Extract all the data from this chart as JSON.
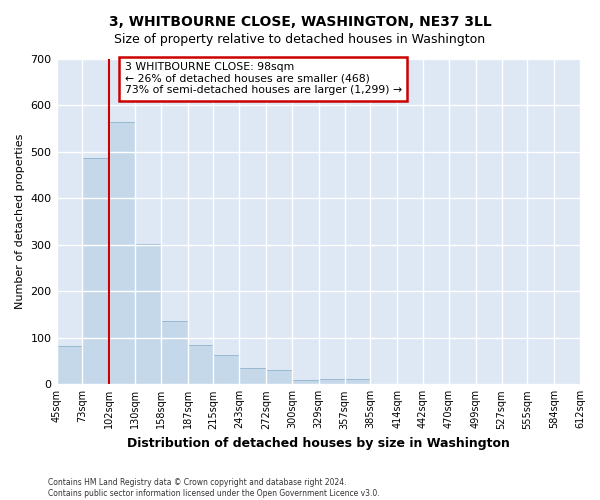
{
  "title": "3, WHITBOURNE CLOSE, WASHINGTON, NE37 3LL",
  "subtitle": "Size of property relative to detached houses in Washington",
  "xlabel": "Distribution of detached houses by size in Washington",
  "ylabel": "Number of detached properties",
  "bar_color": "#c5d8ea",
  "bar_edgecolor": "#9ab8d0",
  "plot_bg_color": "#dde8f4",
  "fig_bg_color": "#ffffff",
  "grid_color": "#ffffff",
  "bins": [
    45,
    73,
    102,
    130,
    158,
    187,
    215,
    243,
    272,
    300,
    329,
    357,
    385,
    414,
    442,
    470,
    499,
    527,
    555,
    584,
    612
  ],
  "values": [
    82,
    487,
    564,
    302,
    137,
    85,
    63,
    36,
    30,
    10,
    11,
    11,
    0,
    0,
    0,
    0,
    0,
    0,
    0,
    0
  ],
  "tick_labels": [
    "45sqm",
    "73sqm",
    "102sqm",
    "130sqm",
    "158sqm",
    "187sqm",
    "215sqm",
    "243sqm",
    "272sqm",
    "300sqm",
    "329sqm",
    "357sqm",
    "385sqm",
    "414sqm",
    "442sqm",
    "470sqm",
    "499sqm",
    "527sqm",
    "555sqm",
    "584sqm",
    "612sqm"
  ],
  "ylim": [
    0,
    700
  ],
  "yticks": [
    0,
    100,
    200,
    300,
    400,
    500,
    600,
    700
  ],
  "property_line_x": 102,
  "annotation_line1": "3 WHITBOURNE CLOSE: 98sqm",
  "annotation_line2": "← 26% of detached houses are smaller (468)",
  "annotation_line3": "73% of semi-detached houses are larger (1,299) →",
  "annotation_box_color": "white",
  "annotation_box_edgecolor": "#cc0000",
  "property_line_color": "#cc0000",
  "footer_line1": "Contains HM Land Registry data © Crown copyright and database right 2024.",
  "footer_line2": "Contains public sector information licensed under the Open Government Licence v3.0."
}
